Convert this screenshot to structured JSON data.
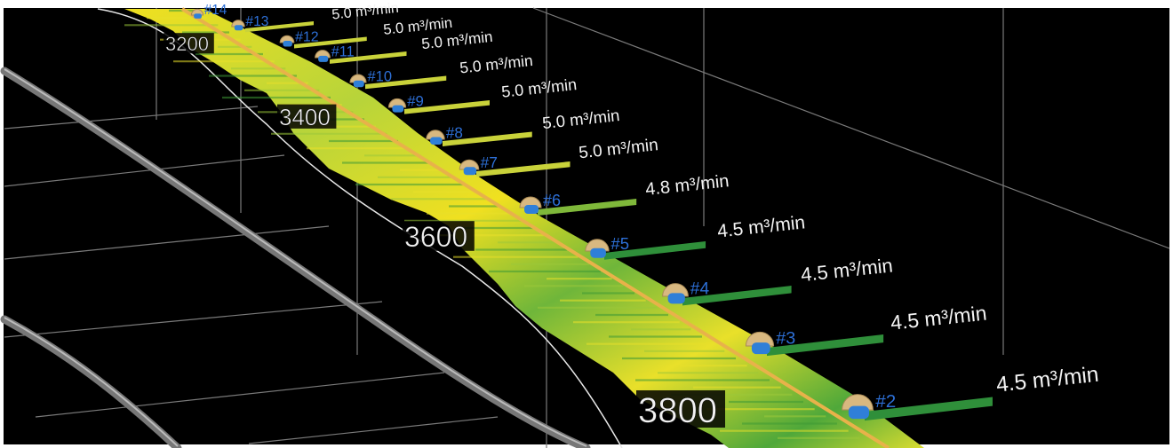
{
  "colors": {
    "background": "#000000",
    "frame": "#ffffff",
    "grid": "#8a8a8a",
    "wellbore": "#e8b24a",
    "sleeve": "#2f7fd8",
    "stage_label": "#2d6fd6",
    "rate_high": "#c9d23a",
    "rate_mid": "#7fb83a",
    "rate_low": "#2f8f3a",
    "log_yellow": "#f0e020",
    "log_green": "#4fa83a"
  },
  "depth_markers": [
    {
      "value": "3200"
    },
    {
      "value": "3400"
    },
    {
      "value": "3600"
    },
    {
      "value": "3800"
    }
  ],
  "stages": [
    {
      "label": "#14",
      "rate": "",
      "rate_value": null
    },
    {
      "label": "#13",
      "rate": "5.0 m³/min",
      "rate_value": 5.0
    },
    {
      "label": "#12",
      "rate": "5.0 m³/min",
      "rate_value": 5.0
    },
    {
      "label": "#11",
      "rate": "5.0 m³/min",
      "rate_value": 5.0
    },
    {
      "label": "#10",
      "rate": "5.0 m³/min",
      "rate_value": 5.0
    },
    {
      "label": "#9",
      "rate": "5.0 m³/min",
      "rate_value": 5.0
    },
    {
      "label": "#8",
      "rate": "5.0 m³/min",
      "rate_value": 5.0
    },
    {
      "label": "#7",
      "rate": "5.0 m³/min",
      "rate_value": 5.0
    },
    {
      "label": "#6",
      "rate": "4.8 m³/min",
      "rate_value": 4.8
    },
    {
      "label": "#5",
      "rate": "4.5 m³/min",
      "rate_value": 4.5
    },
    {
      "label": "#4",
      "rate": "4.5 m³/min",
      "rate_value": 4.5
    },
    {
      "label": "#3",
      "rate": "4.5 m³/min",
      "rate_value": 4.5
    },
    {
      "label": "#2",
      "rate": "4.5 m³/min",
      "rate_value": 4.5
    }
  ]
}
